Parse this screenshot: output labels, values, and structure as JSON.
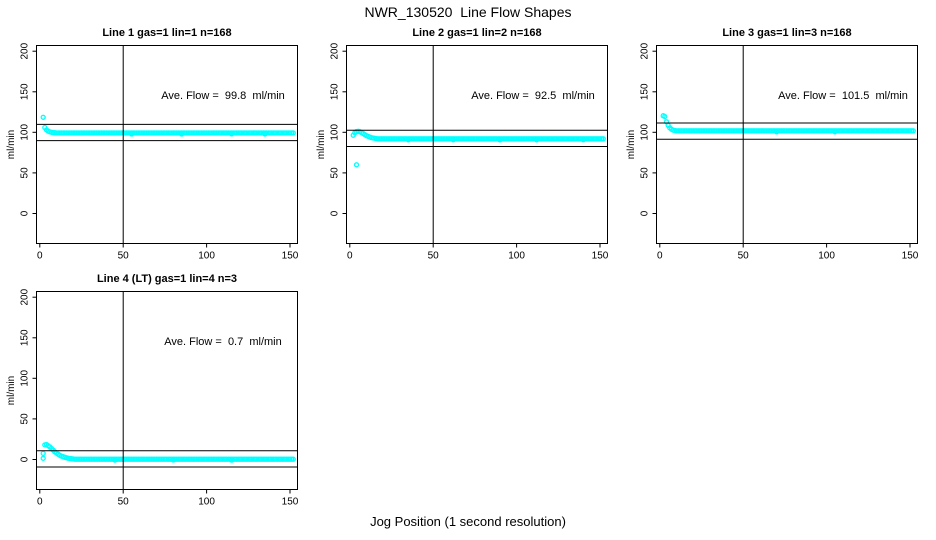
{
  "figure_title": "NWR_130520  Line Flow Shapes",
  "x_axis_label": "Jog Position (1 second resolution)",
  "colors": {
    "points": "#00ffff",
    "axis": "#000000",
    "background": "#ffffff"
  },
  "chart_data": [
    {
      "type": "scatter",
      "title": "Line 1 gas=1 lin=1 n=168",
      "annotation": "Ave. Flow =  99.8  ml/min",
      "ave_flow_ml_min": 99.8,
      "n_points": 168,
      "ylabel": "ml/min",
      "x_ticks": [
        0,
        50,
        100,
        150
      ],
      "y_ticks": [
        0,
        50,
        100,
        150,
        200
      ],
      "xlim": [
        -2,
        154.5
      ],
      "ylim": [
        -37,
        207
      ],
      "vline_x": 50,
      "ref_lines": [
        109.8,
        89.8
      ],
      "series": {
        "outliers": [
          [
            2,
            118.5
          ]
        ],
        "transient": [
          [
            3,
            106
          ],
          [
            4,
            103
          ],
          [
            5,
            101.5
          ],
          [
            6,
            100.5
          ],
          [
            7,
            100
          ],
          [
            8,
            99.7
          ],
          [
            9,
            99.5
          ]
        ],
        "steady": {
          "from": 10,
          "to": 152,
          "value": 99.3
        },
        "minor_dips": [
          [
            55,
            97.9
          ],
          [
            85,
            98
          ],
          [
            115,
            98.1
          ],
          [
            135,
            98
          ]
        ]
      }
    },
    {
      "type": "scatter",
      "title": "Line 2 gas=1 lin=2 n=168",
      "annotation": "Ave. Flow =  92.5  ml/min",
      "ave_flow_ml_min": 92.5,
      "n_points": 168,
      "ylabel": "ml/min",
      "x_ticks": [
        0,
        50,
        100,
        150
      ],
      "y_ticks": [
        0,
        50,
        100,
        150,
        200
      ],
      "xlim": [
        -2,
        154.5
      ],
      "ylim": [
        -37,
        207
      ],
      "vline_x": 50,
      "ref_lines": [
        102.5,
        82.5
      ],
      "series": {
        "outliers": [
          [
            4,
            60
          ]
        ],
        "transient": [
          [
            2,
            96.5
          ],
          [
            3,
            99.5
          ],
          [
            4,
            101
          ],
          [
            5,
            101.3
          ],
          [
            6,
            100.8
          ],
          [
            7,
            99.8
          ],
          [
            8,
            98.5
          ],
          [
            9,
            97.2
          ],
          [
            10,
            96
          ],
          [
            11,
            95
          ],
          [
            12,
            94.2
          ],
          [
            13,
            93.5
          ],
          [
            14,
            93
          ],
          [
            15,
            92.6
          ],
          [
            16,
            92.3
          ]
        ],
        "steady": {
          "from": 17,
          "to": 152,
          "value": 92
        },
        "minor_dips": [
          [
            35,
            90.8
          ],
          [
            62,
            90.9
          ],
          [
            90,
            90.7
          ],
          [
            112,
            90.8
          ],
          [
            140,
            90.9
          ]
        ]
      }
    },
    {
      "type": "scatter",
      "title": "Line 3 gas=1 lin=3 n=168",
      "annotation": "Ave. Flow =  101.5  ml/min",
      "ave_flow_ml_min": 101.5,
      "n_points": 168,
      "ylabel": "ml/min",
      "x_ticks": [
        0,
        50,
        100,
        150
      ],
      "y_ticks": [
        0,
        50,
        100,
        150,
        200
      ],
      "xlim": [
        -2,
        154.5
      ],
      "ylim": [
        -37,
        207
      ],
      "vline_x": 50,
      "ref_lines": [
        111.5,
        91.5
      ],
      "series": {
        "outliers": [],
        "transient": [
          [
            2,
            120.5
          ],
          [
            3,
            119.5
          ],
          [
            4,
            113
          ],
          [
            5,
            108.5
          ],
          [
            6,
            105.5
          ],
          [
            7,
            103.8
          ],
          [
            8,
            102.8
          ],
          [
            9,
            102.3
          ]
        ],
        "steady": {
          "from": 10,
          "to": 152,
          "value": 101.9
        },
        "minor_dips": [
          [
            70,
            100.6
          ],
          [
            105,
            100.7
          ]
        ]
      }
    },
    {
      "type": "scatter",
      "title": "Line 4 (LT) gas=1 lin=4 n=3",
      "annotation": "Ave. Flow =  0.7  ml/min",
      "ave_flow_ml_min": 0.7,
      "n_points": 3,
      "ylabel": "ml/min",
      "x_ticks": [
        0,
        50,
        100,
        150
      ],
      "y_ticks": [
        0,
        50,
        100,
        150,
        200
      ],
      "xlim": [
        -2,
        154.5
      ],
      "ylim": [
        -37,
        207
      ],
      "vline_x": 50,
      "ref_lines": [
        10.7,
        -9.3
      ],
      "series": {
        "outliers": [
          [
            2,
            7.5
          ],
          [
            2,
            1.5
          ]
        ],
        "transient": [
          [
            3,
            18
          ],
          [
            4,
            18.5
          ],
          [
            5,
            17
          ],
          [
            6,
            15.5
          ],
          [
            7,
            13.5
          ],
          [
            8,
            11.5
          ],
          [
            9,
            9.5
          ],
          [
            10,
            8
          ],
          [
            11,
            6.5
          ],
          [
            12,
            5.2
          ],
          [
            13,
            4.2
          ],
          [
            14,
            3.4
          ],
          [
            15,
            2.7
          ],
          [
            16,
            2.1
          ],
          [
            17,
            1.6
          ],
          [
            18,
            1.2
          ],
          [
            19,
            0.9
          ],
          [
            20,
            0.7
          ]
        ],
        "steady": {
          "from": 21,
          "to": 152,
          "value": 0.4
        },
        "minor_dips": [
          [
            45,
            -0.8
          ],
          [
            80,
            -0.7
          ],
          [
            115,
            -0.8
          ]
        ]
      }
    }
  ]
}
